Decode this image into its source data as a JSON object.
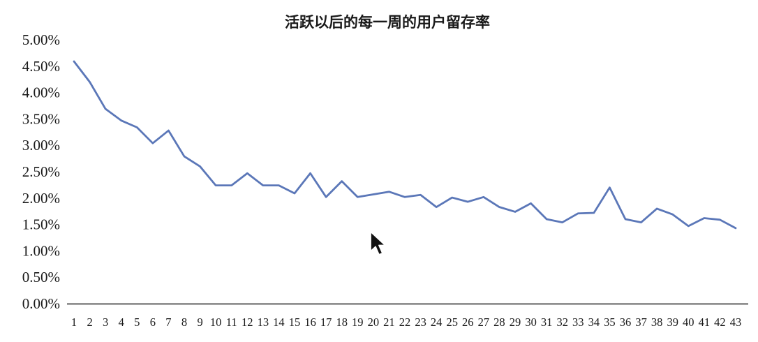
{
  "chart_data": {
    "type": "line",
    "title": "活跃以后的每一周的用户留存率",
    "xlabel": "",
    "ylabel": "",
    "ylim": [
      0,
      0.05
    ],
    "y_ticks": [
      "0.00%",
      "0.50%",
      "1.00%",
      "1.50%",
      "2.00%",
      "2.50%",
      "3.00%",
      "3.50%",
      "4.00%",
      "4.50%",
      "5.00%"
    ],
    "grid": false,
    "legend": "none",
    "x": [
      1,
      2,
      3,
      4,
      5,
      6,
      7,
      8,
      9,
      10,
      11,
      12,
      13,
      14,
      15,
      16,
      17,
      18,
      19,
      20,
      21,
      22,
      23,
      24,
      25,
      26,
      27,
      28,
      29,
      30,
      31,
      32,
      33,
      34,
      35,
      36,
      37,
      38,
      39,
      40,
      41,
      42,
      43
    ],
    "series": [
      {
        "color": "#5b77b8",
        "values": [
          0.0459,
          0.042,
          0.0369,
          0.0347,
          0.0334,
          0.0304,
          0.0328,
          0.0279,
          0.026,
          0.0224,
          0.0224,
          0.0247,
          0.0224,
          0.0224,
          0.0209,
          0.0247,
          0.0202,
          0.0232,
          0.0202,
          0.0207,
          0.0212,
          0.0202,
          0.0206,
          0.0183,
          0.0201,
          0.0193,
          0.0202,
          0.0183,
          0.0174,
          0.019,
          0.016,
          0.0154,
          0.0171,
          0.0172,
          0.022,
          0.016,
          0.0154,
          0.018,
          0.0169,
          0.0147,
          0.0162,
          0.0159,
          0.0143
        ]
      }
    ]
  },
  "colors": {
    "line": "#5b77b8",
    "axis": "#222222",
    "text": "#1a1a1a"
  },
  "cursor": {
    "icon": "mouse-pointer-icon"
  }
}
